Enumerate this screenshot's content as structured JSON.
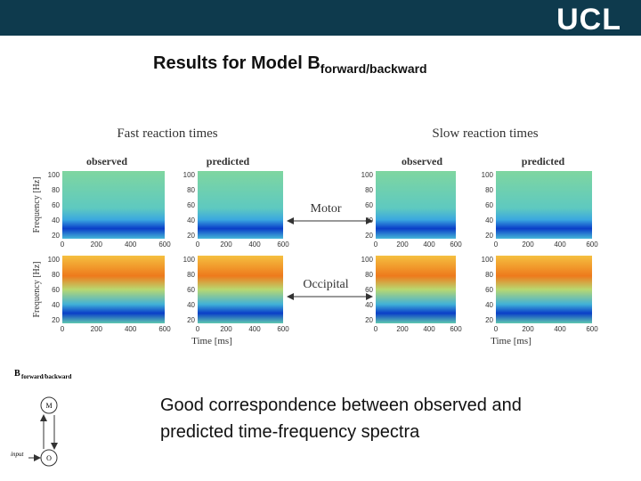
{
  "header": {
    "logo": "UCL"
  },
  "title": {
    "main": "Results for Model B",
    "subscript": "forward/backward"
  },
  "figure": {
    "fast_title": "Fast reaction times",
    "slow_title": "Slow reaction times",
    "observed": "observed",
    "predicted": "predicted",
    "rows": [
      "Motor",
      "Occipital"
    ],
    "ylabel": "Frequency [Hz]",
    "xlabel": "Time [ms]",
    "yticks": [
      "100",
      "80",
      "60",
      "40",
      "20"
    ],
    "xticks": [
      "0",
      "200",
      "400",
      "600"
    ]
  },
  "diagram": {
    "label": "B",
    "subscript": "forward/backward",
    "nodes": [
      "M",
      "O"
    ],
    "input": "input"
  },
  "caption": "Good correspondence between observed and predicted time-frequency spectra"
}
